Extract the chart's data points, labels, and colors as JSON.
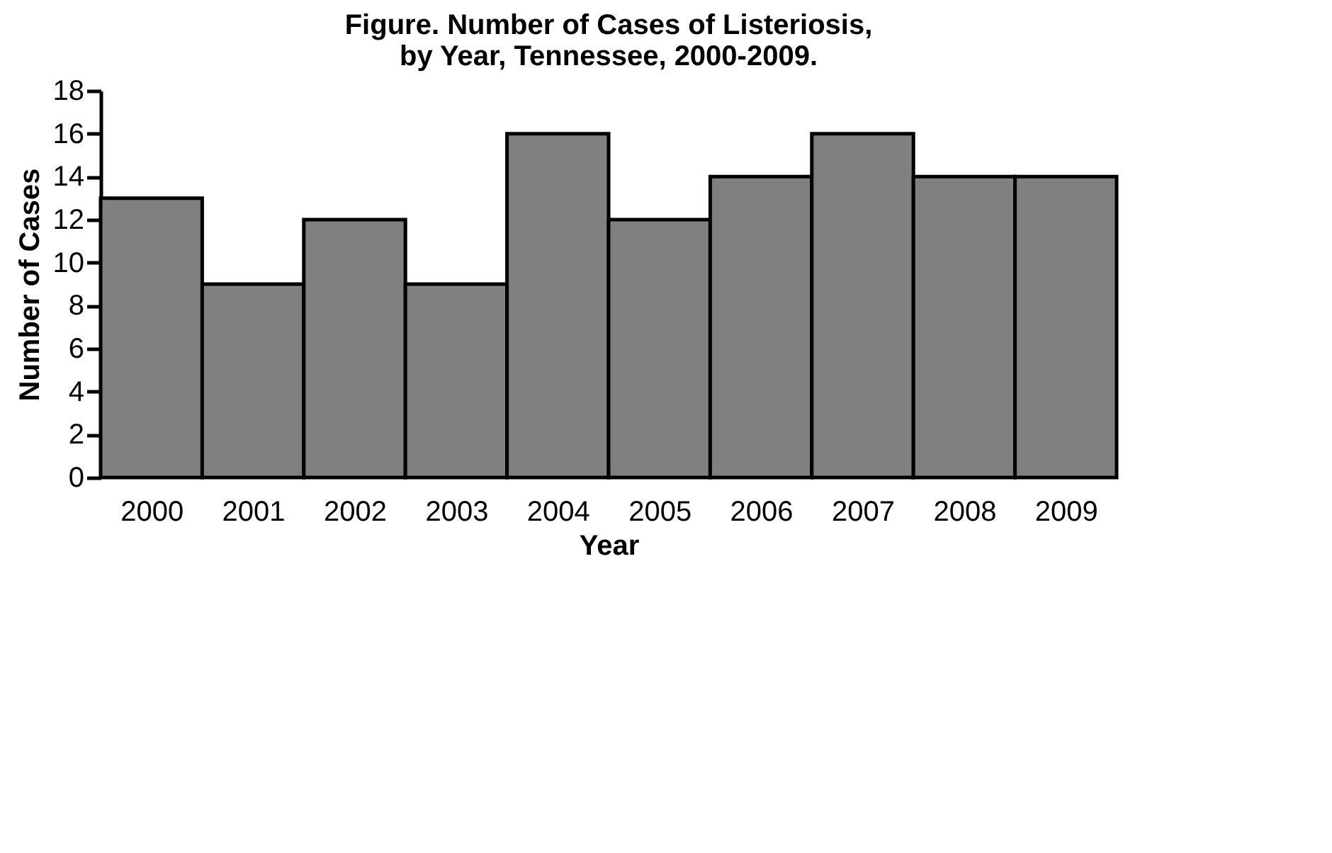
{
  "chart_data": {
    "type": "bar",
    "title": [
      "Figure. Number of Cases of Listeriosis,",
      "by Year, Tennessee, 2000-2009."
    ],
    "xlabel": "Year",
    "ylabel": "Number of Cases",
    "categories": [
      "2000",
      "2001",
      "2002",
      "2003",
      "2004",
      "2005",
      "2006",
      "2007",
      "2008",
      "2009"
    ],
    "values": [
      13,
      9,
      12,
      9,
      16,
      12,
      14,
      16,
      14,
      14
    ],
    "color": "#808080",
    "ylim": [
      0,
      18
    ],
    "yticks": [
      0,
      2,
      4,
      6,
      8,
      10,
      12,
      14,
      16,
      18
    ],
    "grid": false
  }
}
